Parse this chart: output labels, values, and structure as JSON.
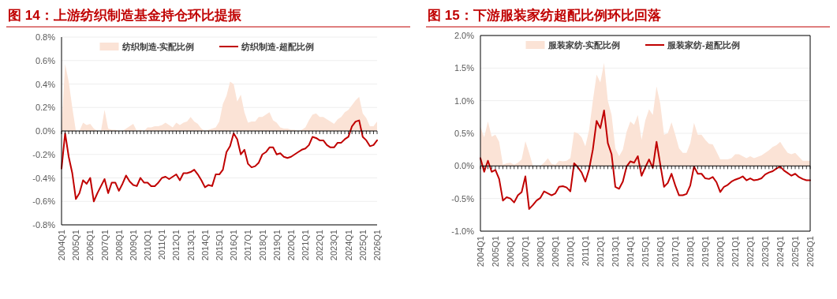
{
  "chart_data": [
    {
      "type": "line",
      "title": "图 14：上游纺织制造基金持仓环比提振",
      "legend": "top",
      "grid": "y",
      "marker": "none",
      "line_style": "solid",
      "categories": [
        "2004Q1",
        null,
        null,
        null,
        "2005Q1",
        null,
        null,
        null,
        "2006Q1",
        null,
        null,
        null,
        "2007Q1",
        null,
        null,
        null,
        "2008Q1",
        null,
        null,
        null,
        "2009Q1",
        null,
        null,
        null,
        "2010Q1",
        null,
        null,
        null,
        "2011Q1",
        null,
        null,
        null,
        "2012Q1",
        null,
        null,
        null,
        "2013Q1",
        null,
        null,
        null,
        "2014Q1",
        null,
        null,
        null,
        "2015Q1",
        null,
        null,
        null,
        "2016Q1",
        null,
        null,
        null,
        "2017Q1",
        null,
        null,
        null,
        "2018Q1",
        null,
        null,
        null,
        "2019Q1",
        null,
        null,
        null,
        "2020Q1",
        null,
        null,
        null,
        "2021Q1",
        null,
        null,
        null,
        "2022Q1",
        null,
        null,
        null,
        "2023Q1",
        null,
        null,
        null,
        "2024Q1",
        null,
        null,
        null,
        "2025Q1",
        null,
        null,
        null,
        "2026Q1"
      ],
      "ylim": [
        -0.8,
        0.8
      ],
      "yticks": [
        {
          "value": -0.8,
          "label": "-0.8%"
        },
        {
          "value": -0.6,
          "label": "-0.6%"
        },
        {
          "value": -0.4,
          "label": "-0.4%"
        },
        {
          "value": -0.2,
          "label": "-0.2%"
        },
        {
          "value": 0,
          "label": "0.0%"
        },
        {
          "value": 0.2,
          "label": "0.2%"
        },
        {
          "value": 0.4,
          "label": "0.4%"
        },
        {
          "value": 0.6,
          "label": "0.6%"
        },
        {
          "value": 0.8,
          "label": "0.8%"
        }
      ],
      "series": [
        {
          "name": "纺织制造-实配比例",
          "type": "area",
          "color": "#fbe3d6",
          "values": [
            0.02,
            0.57,
            0.42,
            0.2,
            0,
            0,
            0.07,
            0.05,
            0.06,
            0.02,
            0,
            0,
            0.18,
            0.02,
            0.01,
            0.01,
            0,
            0,
            0.02,
            0.04,
            0.06,
            0,
            0.01,
            0,
            0.03,
            0.03,
            0.04,
            0.04,
            0.05,
            0.07,
            0.05,
            0.03,
            0.07,
            0.05,
            0.07,
            0.08,
            0.12,
            0.08,
            0.06,
            0.02,
            0,
            0.01,
            0.02,
            0.03,
            0.08,
            0.23,
            0.3,
            0.42,
            0.4,
            0.25,
            0.31,
            0.16,
            0.07,
            0.08,
            0.08,
            0.12,
            0.12,
            0.14,
            0.16,
            0.09,
            0.07,
            0.03,
            0.02,
            0.02,
            0.01,
            0.01,
            0,
            0.01,
            0.03,
            0.09,
            0.14,
            0.15,
            0.12,
            0.12,
            0.1,
            0.08,
            0.06,
            0.1,
            0.12,
            0.16,
            0.18,
            0.22,
            0.26,
            0.29,
            0.15,
            0.11,
            0.04,
            0.04,
            0.08
          ]
        },
        {
          "name": "纺织制造-超配比例",
          "type": "line",
          "color": "#c00000",
          "values": [
            -0.32,
            -0.02,
            -0.22,
            -0.36,
            -0.58,
            -0.53,
            -0.42,
            -0.45,
            -0.4,
            -0.6,
            -0.53,
            -0.47,
            -0.41,
            -0.53,
            -0.44,
            -0.44,
            -0.51,
            -0.45,
            -0.38,
            -0.43,
            -0.46,
            -0.47,
            -0.4,
            -0.44,
            -0.44,
            -0.47,
            -0.47,
            -0.44,
            -0.4,
            -0.39,
            -0.41,
            -0.39,
            -0.37,
            -0.42,
            -0.36,
            -0.36,
            -0.35,
            -0.33,
            -0.37,
            -0.42,
            -0.48,
            -0.46,
            -0.47,
            -0.37,
            -0.37,
            -0.33,
            -0.18,
            -0.13,
            -0.02,
            -0.07,
            -0.2,
            -0.16,
            -0.28,
            -0.31,
            -0.3,
            -0.27,
            -0.2,
            -0.18,
            -0.14,
            -0.14,
            -0.2,
            -0.19,
            -0.22,
            -0.23,
            -0.22,
            -0.2,
            -0.18,
            -0.16,
            -0.15,
            -0.12,
            -0.05,
            -0.06,
            -0.08,
            -0.08,
            -0.12,
            -0.14,
            -0.14,
            -0.1,
            -0.1,
            -0.07,
            -0.05,
            0.04,
            0.08,
            0.09,
            -0.05,
            -0.08,
            -0.13,
            -0.12,
            -0.08
          ]
        }
      ]
    },
    {
      "type": "line",
      "title": "图 15：下游服装家纺超配比例环比回落",
      "legend": "top",
      "grid": "y",
      "marker": "none",
      "line_style": "solid",
      "categories": [
        "2004Q1",
        null,
        null,
        null,
        "2005Q1",
        null,
        null,
        null,
        "2006Q1",
        null,
        null,
        null,
        "2007Q1",
        null,
        null,
        null,
        "2008Q1",
        null,
        null,
        null,
        "2009Q1",
        null,
        null,
        null,
        "2010Q1",
        null,
        null,
        null,
        "2011Q1",
        null,
        null,
        null,
        "2012Q1",
        null,
        null,
        null,
        "2013Q1",
        null,
        null,
        null,
        "2014Q1",
        null,
        null,
        null,
        "2015Q1",
        null,
        null,
        null,
        "2016Q1",
        null,
        null,
        null,
        "2017Q1",
        null,
        null,
        null,
        "2018Q1",
        null,
        null,
        null,
        "2019Q1",
        null,
        null,
        null,
        "2020Q1",
        null,
        null,
        null,
        "2021Q1",
        null,
        null,
        null,
        "2022Q1",
        null,
        null,
        null,
        "2023Q1",
        null,
        null,
        null,
        "2024Q1",
        null,
        null,
        null,
        "2025Q1",
        null,
        null,
        null,
        "2026Q1"
      ],
      "ylim": [
        -1.0,
        2.0
      ],
      "yticks": [
        {
          "value": -1.0,
          "label": "-1.0%"
        },
        {
          "value": -0.5,
          "label": "-0.5%"
        },
        {
          "value": 0,
          "label": "0.0%"
        },
        {
          "value": 0.5,
          "label": "0.5%"
        },
        {
          "value": 1.0,
          "label": "1.0%"
        },
        {
          "value": 1.5,
          "label": "1.5%"
        },
        {
          "value": 2.0,
          "label": "2.0%"
        }
      ],
      "series": [
        {
          "name": "服装家纺-实配比例",
          "type": "area",
          "color": "#fbe3d6",
          "values": [
            0.6,
            0.44,
            0.68,
            0.45,
            0.48,
            0.37,
            0.02,
            0.04,
            0.05,
            0.02,
            0.05,
            0.1,
            0.38,
            0.2,
            0,
            0,
            0,
            0.05,
            0.12,
            0.03,
            0.02,
            0.08,
            0.07,
            0.08,
            0.12,
            0.52,
            0.5,
            0.44,
            0.3,
            0.55,
            1.0,
            1.4,
            1.28,
            1.58,
            1.0,
            0.78,
            0.27,
            0.15,
            0.25,
            0.52,
            0.68,
            0.63,
            0.78,
            0.4,
            0.7,
            0.87,
            0.78,
            1.22,
            0.95,
            0.48,
            0.5,
            0.67,
            0.48,
            0.27,
            0.2,
            0.2,
            0.35,
            0.66,
            0.48,
            0.48,
            0.4,
            0.34,
            0.33,
            0.22,
            0.1,
            0.1,
            0.1,
            0.12,
            0.18,
            0.18,
            0.15,
            0.12,
            0.15,
            0.12,
            0.14,
            0.16,
            0.2,
            0.24,
            0.29,
            0.32,
            0.37,
            0.28,
            0.2,
            0.18,
            0.2,
            0.14,
            0.08,
            0.08,
            0.08
          ]
        },
        {
          "name": "服装家纺-超配比例",
          "type": "line",
          "color": "#c00000",
          "values": [
            0.12,
            -0.09,
            0.08,
            -0.09,
            -0.06,
            -0.2,
            -0.53,
            -0.48,
            -0.5,
            -0.56,
            -0.45,
            -0.4,
            -0.16,
            -0.66,
            -0.6,
            -0.53,
            -0.49,
            -0.39,
            -0.42,
            -0.45,
            -0.42,
            -0.32,
            -0.31,
            -0.33,
            -0.39,
            0.04,
            -0.02,
            -0.1,
            -0.24,
            -0.05,
            0.25,
            0.69,
            0.58,
            0.85,
            0.35,
            0.18,
            -0.32,
            -0.35,
            -0.24,
            -0.01,
            0.07,
            0.05,
            0.15,
            -0.15,
            -0.02,
            0.1,
            -0.03,
            0.37,
            0.02,
            -0.32,
            -0.26,
            -0.12,
            -0.3,
            -0.45,
            -0.45,
            -0.43,
            -0.3,
            -0.01,
            -0.12,
            -0.12,
            -0.19,
            -0.2,
            -0.17,
            -0.25,
            -0.4,
            -0.32,
            -0.29,
            -0.24,
            -0.21,
            -0.19,
            -0.16,
            -0.22,
            -0.19,
            -0.22,
            -0.21,
            -0.19,
            -0.13,
            -0.1,
            -0.08,
            -0.04,
            -0.01,
            -0.07,
            -0.11,
            -0.15,
            -0.12,
            -0.17,
            -0.2,
            -0.22,
            -0.22
          ]
        }
      ]
    }
  ]
}
